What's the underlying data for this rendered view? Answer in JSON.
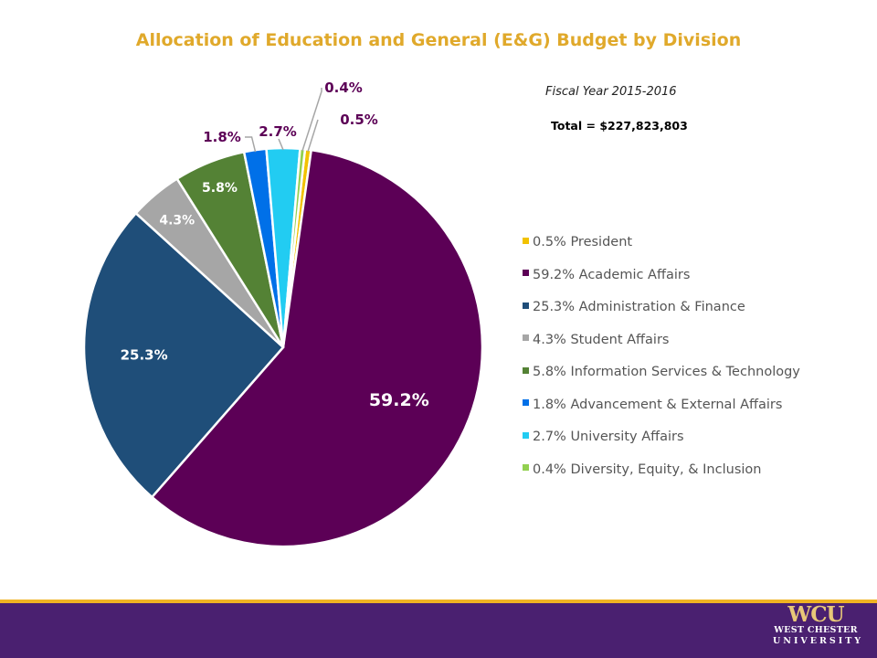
{
  "title": "Allocation of Education and General (E&G) Budget by Division",
  "fiscal_year": "Fiscal Year 2015-2016",
  "total": "Total = $227,823,803",
  "logo": {
    "mark": "WCU",
    "line1": "WEST CHESTER",
    "line2": "UNIVERSITY"
  },
  "chart_data": {
    "type": "pie",
    "slices": [
      {
        "name": "President",
        "value": 0.5,
        "label": "0.5%",
        "legend": "0.5% President",
        "color": "#f2c200"
      },
      {
        "name": "Academic Affairs",
        "value": 59.2,
        "label": "59.2%",
        "legend": "59.2% Academic Affairs",
        "color": "#5c0056"
      },
      {
        "name": "Administration & Finance",
        "value": 25.3,
        "label": "25.3%",
        "legend": "25.3% Administration & Finance",
        "color": "#1f4e79"
      },
      {
        "name": "Student Affairs",
        "value": 4.3,
        "label": "4.3%",
        "legend": "4.3% Student Affairs",
        "color": "#a6a6a6"
      },
      {
        "name": "Information Services & Technology",
        "value": 5.8,
        "label": "5.8%",
        "legend": "5.8% Information Services & Technology",
        "color": "#548235"
      },
      {
        "name": "Advancement & External Affairs",
        "value": 1.8,
        "label": "1.8%",
        "legend": "1.8% Advancement & External Affairs",
        "color": "#0070e8"
      },
      {
        "name": "University Affairs",
        "value": 2.7,
        "label": "2.7%",
        "legend": "2.7% University Affairs",
        "color": "#22ccf2"
      },
      {
        "name": "Diversity, Equity, & Inclusion",
        "value": 0.4,
        "label": "0.4%",
        "legend": "0.4% Diversity, Equity, & Inclusion",
        "color": "#92d050"
      }
    ],
    "legend_position": "right"
  }
}
